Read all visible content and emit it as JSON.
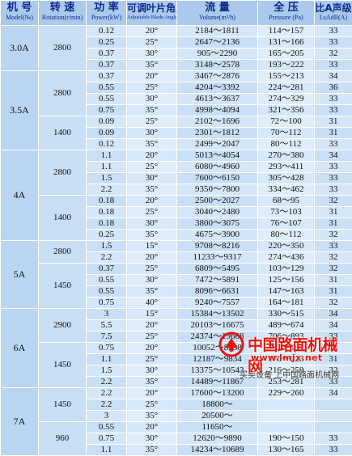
{
  "header": {
    "model_cn": "机 号",
    "model_en": "Model(№)",
    "speed_cn": "转 速",
    "speed_en": "Rotation(r/min)",
    "power_cn": "功 率",
    "power_en": "Power(kW)",
    "angle_cn": "可调叶片角度",
    "angle_en": "Adjustable Blade Angle",
    "volume_cn": "流 量",
    "volume_en": "Volume(m³/h)",
    "pressure_cn": "全 压",
    "pressure_en": "Pressure (Pa)",
    "noise_cn": "比A声级",
    "noise_en": "LsAdB(A)"
  },
  "rows": [
    {
      "model": "3.0A",
      "speed": "2800",
      "power": "0.12",
      "angle": "20°",
      "volume": "2184～1811",
      "pressure": "114～157",
      "noise": "33"
    },
    {
      "power": "0.25",
      "angle": "25°",
      "volume": "2647～2136",
      "pressure": "131～166",
      "noise": "33"
    },
    {
      "power": "0.37",
      "angle": "30°",
      "volume": "905～2290",
      "pressure": "165～205",
      "noise": "32"
    },
    {
      "power": "0.37",
      "angle": "35°",
      "volume": "3148～2578",
      "pressure": "193～222",
      "noise": "33"
    },
    {
      "model": "3.5A",
      "speed": "2800",
      "power": "0.37",
      "angle": "20°",
      "volume": "3467～2876",
      "pressure": "155～213",
      "noise": "34"
    },
    {
      "power": "0.55",
      "angle": "25°",
      "volume": "4204～3392",
      "pressure": "224～281",
      "noise": "36"
    },
    {
      "power": "0.55",
      "angle": "30°",
      "volume": "4613～3637",
      "pressure": "274～329",
      "noise": "33"
    },
    {
      "power": "0.75",
      "angle": "35°",
      "volume": "4998～4094",
      "pressure": "321～356",
      "noise": "33"
    },
    {
      "speed": "1400",
      "power": "0.09",
      "angle": "25°",
      "volume": "2102～1696",
      "pressure": "72～100",
      "noise": "31"
    },
    {
      "power": "0.09",
      "angle": "30°",
      "volume": "2301～1812",
      "pressure": "70～112",
      "noise": "31"
    },
    {
      "power": "0.12",
      "angle": "35°",
      "volume": "2499～2047",
      "pressure": "80～112",
      "noise": "33"
    },
    {
      "model": "4A",
      "speed": "2800",
      "power": "1.1",
      "angle": "20°",
      "volume": "5013～4054",
      "pressure": "270～380",
      "noise": "34"
    },
    {
      "power": "1.1",
      "angle": "25°",
      "volume": "6080～4960",
      "pressure": "293～411",
      "noise": "33"
    },
    {
      "power": "1.5",
      "angle": "30°",
      "volume": "7600～6150",
      "pressure": "305～428",
      "noise": "33"
    },
    {
      "power": "2.2",
      "angle": "35°",
      "volume": "9350～7800",
      "pressure": "334～462",
      "noise": "33"
    },
    {
      "speed": "1400",
      "power": "0.18",
      "angle": "20°",
      "volume": "2500～2027",
      "pressure": "68～95",
      "noise": "32"
    },
    {
      "power": "0.18",
      "angle": "25°",
      "volume": "3040～2480",
      "pressure": "73～103",
      "noise": "31"
    },
    {
      "power": "0.18",
      "angle": "30°",
      "volume": "3800～3075",
      "pressure": "76～107",
      "noise": "31"
    },
    {
      "power": "0.25",
      "angle": "35°",
      "volume": "4675～3900",
      "pressure": "80～112",
      "noise": "32"
    },
    {
      "model": "5A",
      "speed": "2800",
      "power": "1.5",
      "angle": "15°",
      "volume": "9708～8216",
      "pressure": "220～350",
      "noise": "33"
    },
    {
      "power": "2.2",
      "angle": "20°",
      "volume": "11233～9317",
      "pressure": "274～436",
      "noise": "32"
    },
    {
      "speed": "1450",
      "power": "0.37",
      "angle": "25°",
      "volume": "6809～5495",
      "pressure": "103～129",
      "noise": "32"
    },
    {
      "power": "0.55",
      "angle": "30°",
      "volume": "7472～5891",
      "pressure": "125～156",
      "noise": "31"
    },
    {
      "power": "0.55",
      "angle": "35°",
      "volume": "8096～6631",
      "pressure": "147～163",
      "noise": "31"
    },
    {
      "power": "0.75",
      "angle": "40°",
      "volume": "9240～7557",
      "pressure": "164～181",
      "noise": "32"
    },
    {
      "model": "6A",
      "speed": "2900",
      "power": "3",
      "angle": "15°",
      "volume": "15384～13502",
      "pressure": "330～515",
      "noise": "34"
    },
    {
      "power": "5.5",
      "angle": "20°",
      "volume": "20103～16675",
      "pressure": "489～674",
      "noise": "34"
    },
    {
      "power": "7.5",
      "angle": "25°",
      "volume": "24374～19668",
      "pressure": "706～893",
      "noise": "33"
    },
    {
      "speed": "1450",
      "power": "0.75",
      "angle": "20°",
      "volume": "10052～8338",
      "pressure": "122～168",
      "noise": "32"
    },
    {
      "power": "1.1",
      "angle": "25°",
      "volume": "12187～9834",
      "pressure": "176～223",
      "noise": "31"
    },
    {
      "power": "1.5",
      "angle": "30°",
      "volume": "13375～10543",
      "pressure": "216～259",
      "noise": "32"
    },
    {
      "power": "2.2",
      "angle": "35°",
      "volume": "14489～11867",
      "pressure": "253～281",
      "noise": "33"
    },
    {
      "model": "7A",
      "speed": "1450",
      "power": "2.2",
      "angle": "20°",
      "volume": "17600～13200",
      "pressure": "229～260",
      "noise": "34"
    },
    {
      "power": "2.2",
      "angle": "25°",
      "volume": "18800～",
      "pressure": "",
      "noise": ""
    },
    {
      "power": "3",
      "angle": "35°",
      "volume": "20500～",
      "pressure": "",
      "noise": ""
    },
    {
      "speed": "960",
      "power": "0.55",
      "angle": "20°",
      "volume": "11650～",
      "pressure": "",
      "noise": ""
    },
    {
      "power": "0.75",
      "angle": "30°",
      "volume": "12620～9890",
      "pressure": "190～150",
      "noise": "33"
    },
    {
      "power": "1.1",
      "angle": "35°",
      "volume": "14234～10689",
      "pressure": "130～165",
      "noise": "33"
    }
  ],
  "watermark": {
    "name": "中国路面机械网",
    "url": "www.lmjx.net",
    "slogan": "买卖设备 上中国路面机械网"
  }
}
